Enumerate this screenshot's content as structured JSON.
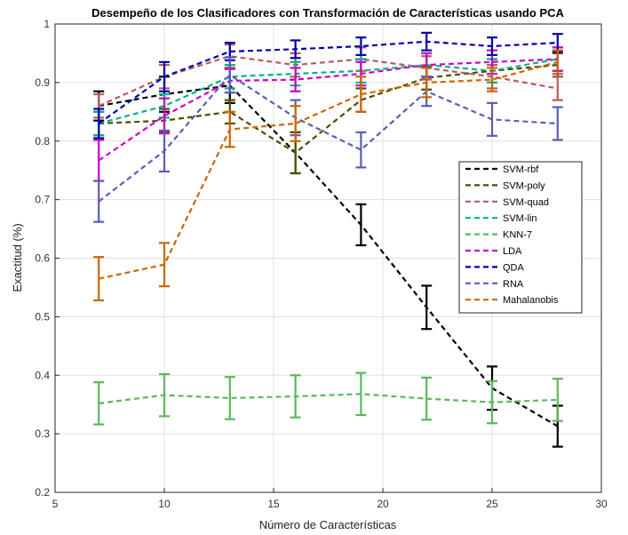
{
  "chart_data": {
    "type": "line",
    "title": "Desempeño de los Clasificadores con Transformación de Características usando PCA",
    "xlabel": "Número de Características",
    "ylabel": "Exactitud (%)",
    "xlim": [
      5,
      30
    ],
    "ylim": [
      0.2,
      1.0
    ],
    "xticks": [
      5,
      10,
      15,
      20,
      25,
      30
    ],
    "yticks": [
      0.2,
      0.3,
      0.4,
      0.5,
      0.6,
      0.7,
      0.8,
      0.9,
      1.0
    ],
    "grid": true,
    "legend_position": "right",
    "x": [
      7,
      10,
      13,
      16,
      19,
      22,
      25,
      28
    ],
    "series": [
      {
        "name": "SVM-rbf",
        "color": "#000000",
        "values": [
          0.86,
          0.88,
          0.895,
          0.78,
          0.657,
          0.516,
          0.378,
          0.313
        ],
        "errors": [
          0.025,
          0.03,
          0.03,
          0.035,
          0.035,
          0.037,
          0.037,
          0.035
        ]
      },
      {
        "name": "SVM-poly",
        "color": "#4d4d00",
        "values": [
          0.83,
          0.835,
          0.85,
          0.78,
          0.87,
          0.908,
          0.92,
          0.93
        ],
        "errors": [
          0.02,
          0.02,
          0.02,
          0.035,
          0.02,
          0.02,
          0.02,
          0.02
        ]
      },
      {
        "name": "SVM-quad",
        "color": "#b85c5c",
        "values": [
          0.86,
          0.91,
          0.945,
          0.93,
          0.94,
          0.925,
          0.91,
          0.89
        ],
        "errors": [
          0.02,
          0.02,
          0.02,
          0.02,
          0.02,
          0.02,
          0.02,
          0.02
        ]
      },
      {
        "name": "SVM-lin",
        "color": "#00b386",
        "values": [
          0.83,
          0.86,
          0.91,
          0.915,
          0.92,
          0.93,
          0.92,
          0.94
        ],
        "errors": [
          0.02,
          0.02,
          0.02,
          0.02,
          0.02,
          0.02,
          0.02,
          0.02
        ]
      },
      {
        "name": "KNN-7",
        "color": "#5cb85c",
        "values": [
          0.352,
          0.366,
          0.361,
          0.364,
          0.368,
          0.36,
          0.354,
          0.358
        ],
        "errors": [
          0.036,
          0.036,
          0.036,
          0.036,
          0.036,
          0.036,
          0.036,
          0.036
        ]
      },
      {
        "name": "LDA",
        "color": "#cc00cc",
        "values": [
          0.767,
          0.843,
          0.903,
          0.905,
          0.915,
          0.93,
          0.935,
          0.94
        ],
        "errors": [
          0.035,
          0.03,
          0.02,
          0.02,
          0.02,
          0.02,
          0.02,
          0.02
        ]
      },
      {
        "name": "QDA",
        "color": "#0000b3",
        "values": [
          0.83,
          0.91,
          0.953,
          0.957,
          0.962,
          0.97,
          0.962,
          0.968
        ],
        "errors": [
          0.025,
          0.025,
          0.015,
          0.015,
          0.015,
          0.015,
          0.015,
          0.015
        ]
      },
      {
        "name": "RNA",
        "color": "#5c5cb8",
        "values": [
          0.697,
          0.783,
          0.913,
          0.84,
          0.785,
          0.885,
          0.837,
          0.83
        ],
        "errors": [
          0.035,
          0.035,
          0.03,
          0.03,
          0.03,
          0.025,
          0.028,
          0.028
        ]
      },
      {
        "name": "Mahalanobis",
        "color": "#cc6600",
        "values": [
          0.565,
          0.589,
          0.82,
          0.83,
          0.88,
          0.9,
          0.905,
          0.935
        ],
        "errors": [
          0.037,
          0.037,
          0.03,
          0.03,
          0.03,
          0.025,
          0.02,
          0.02
        ]
      }
    ]
  }
}
